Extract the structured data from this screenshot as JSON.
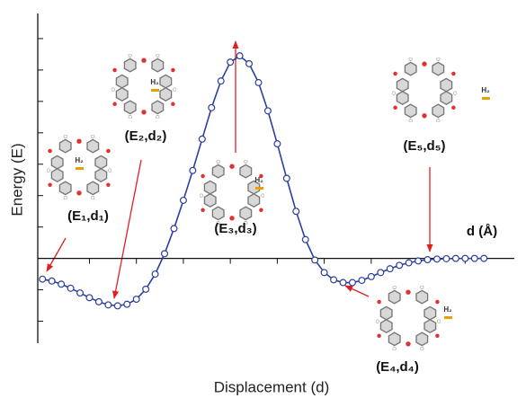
{
  "chart_data": {
    "type": "line",
    "y_label": "Energy (E)",
    "x_label": "Displacement (d)",
    "x_axis_name": "d (Å)",
    "color": "#2b3f9e",
    "x": [
      0,
      1,
      2,
      3,
      4,
      5,
      6,
      7,
      8,
      9,
      10,
      11,
      12,
      13,
      14,
      15,
      16,
      17,
      18,
      19,
      20,
      21,
      22,
      23,
      24,
      25,
      26,
      27,
      28,
      29,
      30,
      31,
      32,
      33,
      34,
      35,
      36,
      37,
      38,
      39,
      40,
      41,
      42,
      43,
      44,
      45,
      46,
      47
    ],
    "values": [
      -0.66,
      -0.72,
      -0.82,
      -0.95,
      -1.1,
      -1.25,
      -1.38,
      -1.48,
      -1.51,
      -1.46,
      -1.3,
      -0.98,
      -0.5,
      0.15,
      0.95,
      1.85,
      2.8,
      3.8,
      4.8,
      5.65,
      6.25,
      6.45,
      6.2,
      5.6,
      4.7,
      3.65,
      2.55,
      1.5,
      0.6,
      -0.05,
      -0.45,
      -0.68,
      -0.77,
      -0.77,
      -0.7,
      -0.58,
      -0.45,
      -0.33,
      -0.22,
      -0.14,
      -0.08,
      -0.04,
      -0.02,
      -0.01,
      0,
      0,
      0,
      0
    ],
    "xlim": [
      -0.5,
      51
    ],
    "ylim": [
      -2.7,
      7.8
    ],
    "xticks": [
      5,
      10,
      15,
      20,
      25,
      30,
      35,
      40,
      45
    ],
    "yticks": [
      -2,
      -1,
      1,
      2,
      3,
      4,
      5,
      6,
      7
    ],
    "annotations": [
      {
        "label": "(E₁,d₁)",
        "h2": "H₂"
      },
      {
        "label": "(E₂,d₂)",
        "h2": "H₂"
      },
      {
        "label": "(E₃,d₃)",
        "h2": "H₂"
      },
      {
        "label": "(E₄,d₄)",
        "h2": "H₂"
      },
      {
        "label": "(E₅,d₅)",
        "h2": "H₂"
      }
    ]
  }
}
